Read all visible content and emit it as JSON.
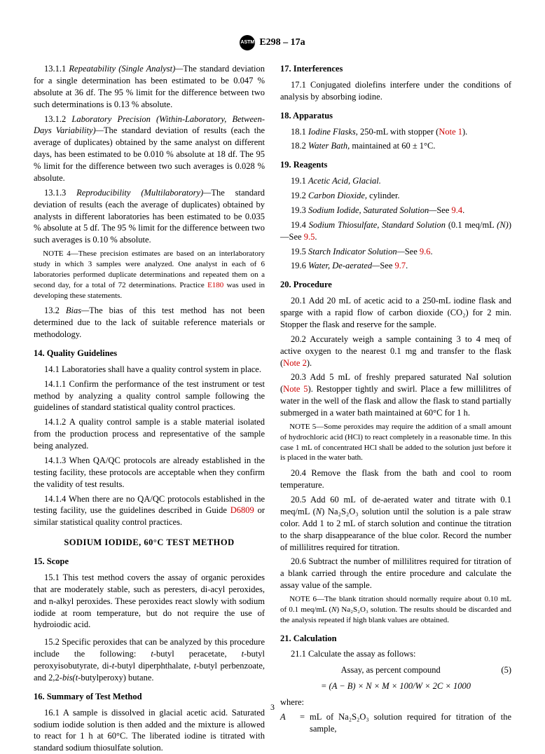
{
  "header": {
    "standard": "E298 – 17a",
    "logo_text": "ASTM"
  },
  "s13": {
    "p1_lead": "13.1.1 ",
    "p1_italic": "Repeatability (Single Analyst)—",
    "p1_body": "The standard deviation for a single determination has been estimated to be 0.047 % absolute at 36 df. The 95 % limit for the difference between two such determinations is 0.13 % absolute.",
    "p2_lead": "13.1.2 ",
    "p2_italic": "Laboratory Precision (Within-Laboratory, Between-Days Variability)—",
    "p2_body": "The standard deviation of results (each the average of duplicates) obtained by the same analyst on different days, has been estimated to be 0.010 % absolute at 18 df. The 95 % limit for the difference between two such averages is 0.028 % absolute.",
    "p3_lead": "13.1.3 ",
    "p3_italic": "Reproducibility (Multilaboratory)—",
    "p3_body": "The standard deviation of results (each the average of duplicates) obtained by analysts in different laboratories has been estimated to be 0.035 % absolute at 5 df. The 95 % limit for the difference between two such averages is 0.10 % absolute.",
    "note4_a": "NOTE 4—These precision estimates are based on an interlaboratory study in which 3 samples were analyzed. One analyst in each of 6 laboratories performed duplicate determinations and repeated them on a second day, for a total of 72 determinations. Practice ",
    "note4_ref": "E180",
    "note4_b": " was used in developing these statements.",
    "p4_lead": "13.2 ",
    "p4_italic": "Bias—",
    "p4_body": "The bias of this test method has not been determined due to the lack of suitable reference materials or methodology."
  },
  "s14": {
    "title": "14. Quality Guidelines",
    "p1": "14.1 Laboratories shall have a quality control system in place.",
    "p2": "14.1.1 Confirm the performance of the test instrument or test method by analyzing a quality control sample following the guidelines of standard statistical quality control practices.",
    "p3": "14.1.2 A quality control sample is a stable material isolated from the production process and representative of the sample being analyzed.",
    "p4": "14.1.3 When QA/QC protocols are already established in the testing facility, these protocols are acceptable when they confirm the validity of test results.",
    "p5_a": "14.1.4 When there are no QA/QC protocols established in the testing facility, use the guidelines described in Guide ",
    "p5_ref": "D6809",
    "p5_b": " or similar statistical quality control practices."
  },
  "method_title": "SODIUM IODIDE, 60°C TEST METHOD",
  "s15": {
    "title": "15. Scope",
    "p1": "15.1 This test method covers the assay of organic peroxides that are moderately stable, such as peresters, di-acyl peroxides, and n-alkyl peroxides. These peroxides react slowly with sodium iodide at room temperature, but do not require the use of hydroiodic acid.",
    "p2_a": "15.2 Specific peroxides that can be analyzed by this procedure include the following: ",
    "p2_i1": "t",
    "p2_b": "-butyl peracetate, ",
    "p2_i2": "t",
    "p2_c": "-butyl peroxyisobutyrate, di-",
    "p2_i3": "t",
    "p2_d": "-butyl diperphthalate, ",
    "p2_i4": "t",
    "p2_e": "-butyl perbenzoate, and 2,2-",
    "p2_i5": "bis(t",
    "p2_f": "-butylperoxy) butane."
  },
  "s16": {
    "title": "16. Summary of Test Method",
    "p1": "16.1 A sample is dissolved in glacial acetic acid. Saturated sodium iodide solution is then added and the mixture is allowed to react for 1 h at 60°C. The liberated iodine is titrated with standard sodium thiosulfate solution."
  },
  "s17": {
    "title": "17. Interferences",
    "p1": "17.1 Conjugated diolefins interfere under the conditions of analysis by absorbing iodine."
  },
  "s18": {
    "title": "18. Apparatus",
    "p1_lead": "18.1 ",
    "p1_italic": "Iodine Flasks,",
    "p1_body": " 250-mL with stopper (",
    "p1_ref": "Note 1",
    "p1_end": ").",
    "p2_lead": "18.2 ",
    "p2_italic": "Water Bath,",
    "p2_body": " maintained at 60 ± 1°C."
  },
  "s19": {
    "title": "19. Reagents",
    "p1_lead": "19.1 ",
    "p1_italic": "Acetic Acid, Glacial.",
    "p2_lead": "19.2 ",
    "p2_italic": "Carbon Dioxide,",
    "p2_body": " cylinder.",
    "p3_lead": "19.3 ",
    "p3_italic": "Sodium Iodide, Saturated Solution—",
    "p3_body": "See ",
    "p3_ref": "9.4",
    "p3_end": ".",
    "p4_lead": "19.4 ",
    "p4_italic": "Sodium Thiosulfate, Standard Solution",
    "p4_body": " (0.1 meq/mL ",
    "p4_i2": "(N)",
    "p4_c": ")—See ",
    "p4_ref": "9.5",
    "p4_end": ".",
    "p5_lead": "19.5 ",
    "p5_italic": "Starch Indicator Solution—",
    "p5_body": "See ",
    "p5_ref": "9.6",
    "p5_end": ".",
    "p6_lead": "19.6 ",
    "p6_italic": "Water, De-aerated—",
    "p6_body": "See ",
    "p6_ref": "9.7",
    "p6_end": "."
  },
  "s20": {
    "title": "20. Procedure",
    "p1": "20.1 Add 20 mL of acetic acid to a 250-mL iodine flask and sparge with a rapid flow of carbon dioxide (CO₂) for 2 min. Stopper the flask and reserve for the sample.",
    "p2_a": "20.2 Accurately weigh a sample containing 3 to 4 meq of active oxygen to the nearest 0.1 mg and transfer to the flask (",
    "p2_ref": "Note 2",
    "p2_b": ").",
    "p3_a": "20.3 Add 5 mL of freshly prepared saturated NaI solution (",
    "p3_ref": "Note 5",
    "p3_b": "). Restopper tightly and swirl. Place a few millilitres of water in the well of the flask and allow the flask to stand partially submerged in a water bath maintained at 60°C for 1 h.",
    "note5": "NOTE 5—Some peroxides may require the addition of a small amount of hydrochloric acid (HCl) to react completely in a reasonable time. In this case 1 mL of concentrated HCl shall be added to the solution just before it is placed in the water bath.",
    "p4": "20.4 Remove the flask from the bath and cool to room temperature.",
    "p5_a": "20.5 Add 60 mL of de-aerated water and titrate with 0.1 meq/mL (",
    "p5_i": "N",
    "p5_b": ") Na₂S₂O₃ solution until the solution is a pale straw color. Add 1 to 2 mL of starch solution and continue the titration to the sharp disappearance of the blue color. Record the number of millilitres required for titration.",
    "p6": "20.6 Subtract the number of millilitres required for titration of a blank carried through the entire procedure and calculate the assay value of the sample.",
    "note6_a": "NOTE 6—The blank titration should normally require about 0.10 mL of 0.1 meq/mL (",
    "note6_i": "N",
    "note6_b": ") Na₂S₂O₃ solution. The results should be discarded and the analysis repeated if high blank values are obtained."
  },
  "s21": {
    "title": "21. Calculation",
    "p1": "21.1 Calculate the assay as follows:",
    "eq_label": "Assay, as percent compound",
    "eq_num": "(5)",
    "eq_body": "= (A − B) × N × M × 100/W × 2C × 1000",
    "where": "where:",
    "A_sym": "A",
    "A_def": "mL of Na₂S₂O₃ solution required for titration of the sample,"
  },
  "page_number": "3"
}
